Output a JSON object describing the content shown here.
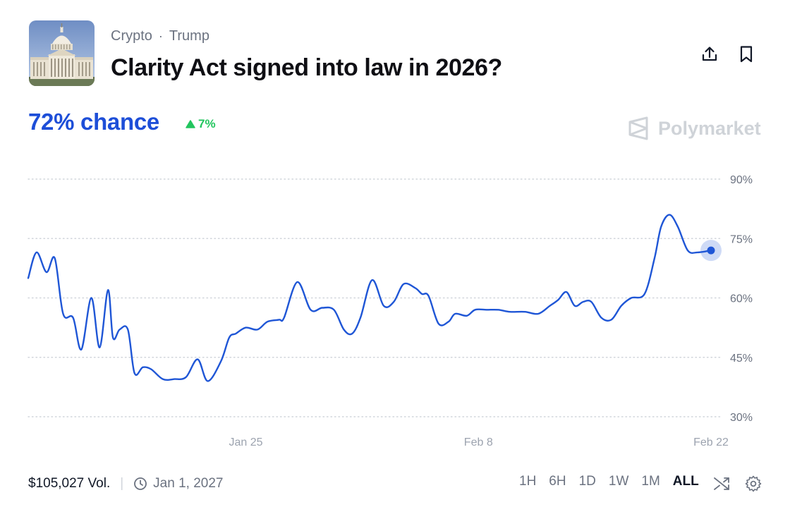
{
  "header": {
    "breadcrumb": [
      "Crypto",
      "Trump"
    ],
    "breadcrumb_separator": "·",
    "title": "Clarity Act signed into law in 2026?"
  },
  "summary": {
    "chance": "72% chance",
    "change": "7%",
    "change_direction": "up",
    "brand": "Polymarket"
  },
  "icons": {
    "share": "share-icon",
    "bookmark": "bookmark-icon",
    "clock": "clock-icon",
    "shuffle": "shuffle-icon",
    "settings": "gear-icon",
    "thumbnail": "capitol-building-image"
  },
  "colors": {
    "accent": "#1d4ed8",
    "line": "#1f56d6",
    "positive": "#22c55e",
    "muted": "#6b7280",
    "brand": "#cfd3d8"
  },
  "footer": {
    "volume": "$105,027 Vol.",
    "end_date": "Jan 1, 2027",
    "ranges": [
      "1H",
      "6H",
      "1D",
      "1W",
      "1M",
      "ALL"
    ],
    "active_range": "ALL"
  },
  "chart_data": {
    "type": "line",
    "title": "",
    "xlabel": "",
    "ylabel": "",
    "ylim": [
      30,
      90
    ],
    "y_ticks": [
      90,
      75,
      60,
      45,
      30
    ],
    "y_tick_labels": [
      "90%",
      "75%",
      "60%",
      "45%",
      "30%"
    ],
    "x_ticks": [
      {
        "label": "Jan 25",
        "day": 25
      },
      {
        "label": "Feb 8",
        "day": 39
      },
      {
        "label": "Feb 22",
        "day": 53
      }
    ],
    "grid": "horizontal-dotted",
    "x_range_days": [
      11.9,
      53
    ],
    "series": [
      {
        "name": "",
        "x_days": [
          11.9,
          12.4,
          13.0,
          13.5,
          14.0,
          14.6,
          15.1,
          15.7,
          16.2,
          16.7,
          17.0,
          17.4,
          17.9,
          18.3,
          18.8,
          19.3,
          20.0,
          20.7,
          21.4,
          22.1,
          22.7,
          23.5,
          24.0,
          24.4,
          25.0,
          25.7,
          26.3,
          27.0,
          27.3,
          28.1,
          28.9,
          29.6,
          30.3,
          30.9,
          31.4,
          31.9,
          32.6,
          33.3,
          33.9,
          34.5,
          35.2,
          35.6,
          36.0,
          36.6,
          37.2,
          37.6,
          38.3,
          38.8,
          39.5,
          40.2,
          40.9,
          41.8,
          42.6,
          43.3,
          43.8,
          44.3,
          44.8,
          45.3,
          45.8,
          46.4,
          47.0,
          47.6,
          48.2,
          49.0,
          49.6,
          50.0,
          50.5,
          51.0,
          51.6,
          52.2,
          53.0
        ],
        "values": [
          65,
          71.5,
          66.5,
          70,
          56,
          55,
          47,
          60,
          47.5,
          62,
          50,
          52,
          52,
          41,
          42.5,
          42,
          39.5,
          39.5,
          40,
          44.5,
          39,
          44,
          50,
          51,
          52.5,
          52,
          54,
          54.5,
          55,
          64,
          57,
          57.5,
          57,
          52,
          51,
          55,
          64.5,
          58,
          59,
          63.5,
          62.5,
          61,
          60.5,
          53.5,
          54,
          56,
          55.5,
          57,
          57,
          57,
          56.5,
          56.5,
          56,
          58,
          59.5,
          61.5,
          58,
          59,
          59,
          55,
          54.5,
          58,
          60,
          61,
          70,
          78,
          81,
          78,
          72,
          71.5,
          72
        ]
      }
    ],
    "current_value": 72
  }
}
